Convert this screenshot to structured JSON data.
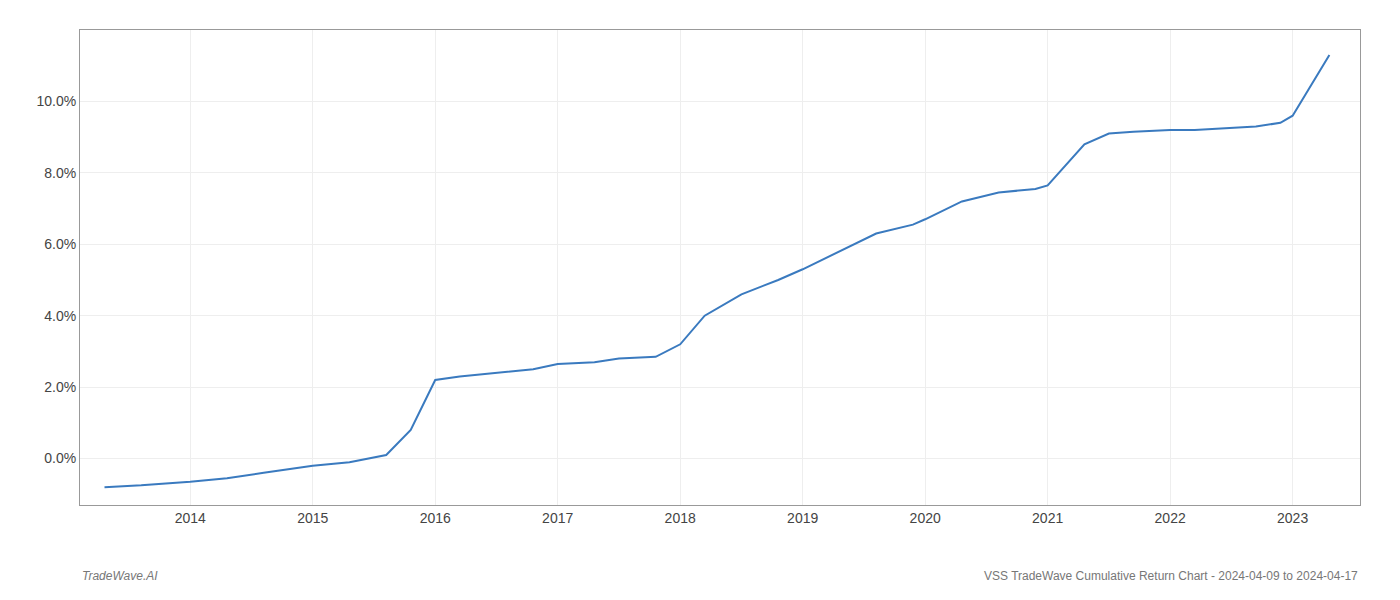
{
  "chart_data": {
    "type": "line",
    "x": [
      2013.3,
      2013.6,
      2014.0,
      2014.3,
      2014.6,
      2015.0,
      2015.3,
      2015.6,
      2015.8,
      2016.0,
      2016.2,
      2016.5,
      2016.8,
      2017.0,
      2017.3,
      2017.5,
      2017.8,
      2018.0,
      2018.2,
      2018.5,
      2018.8,
      2019.0,
      2019.3,
      2019.6,
      2019.9,
      2020.0,
      2020.3,
      2020.6,
      2020.9,
      2021.0,
      2021.3,
      2021.5,
      2021.7,
      2022.0,
      2022.2,
      2022.5,
      2022.7,
      2022.9,
      2023.0,
      2023.3
    ],
    "values": [
      -0.8,
      -0.75,
      -0.65,
      -0.55,
      -0.4,
      -0.2,
      -0.1,
      0.1,
      0.8,
      2.2,
      2.3,
      2.4,
      2.5,
      2.65,
      2.7,
      2.8,
      2.85,
      3.2,
      4.0,
      4.6,
      5.0,
      5.3,
      5.8,
      6.3,
      6.55,
      6.7,
      7.2,
      7.45,
      7.55,
      7.65,
      8.8,
      9.1,
      9.15,
      9.2,
      9.2,
      9.25,
      9.3,
      9.4,
      9.6,
      11.3
    ],
    "color": "#3a7abf",
    "xlim": [
      2013.1,
      2023.55
    ],
    "xticks": [
      2014,
      2015,
      2016,
      2017,
      2018,
      2019,
      2020,
      2021,
      2022,
      2023
    ],
    "ylim": [
      -1.3,
      12.0
    ],
    "yticks": [
      {
        "value": 0.0,
        "label": "0.0%"
      },
      {
        "value": 2.0,
        "label": "2.0%"
      },
      {
        "value": 4.0,
        "label": "4.0%"
      },
      {
        "value": 6.0,
        "label": "6.0%"
      },
      {
        "value": 8.0,
        "label": "8.0%"
      },
      {
        "value": 10.0,
        "label": "10.0%"
      }
    ],
    "grid": true,
    "annotations": [
      "TradeWave.AI",
      "VSS TradeWave Cumulative Return Chart - 2024-04-09 to 2024-04-17"
    ]
  }
}
